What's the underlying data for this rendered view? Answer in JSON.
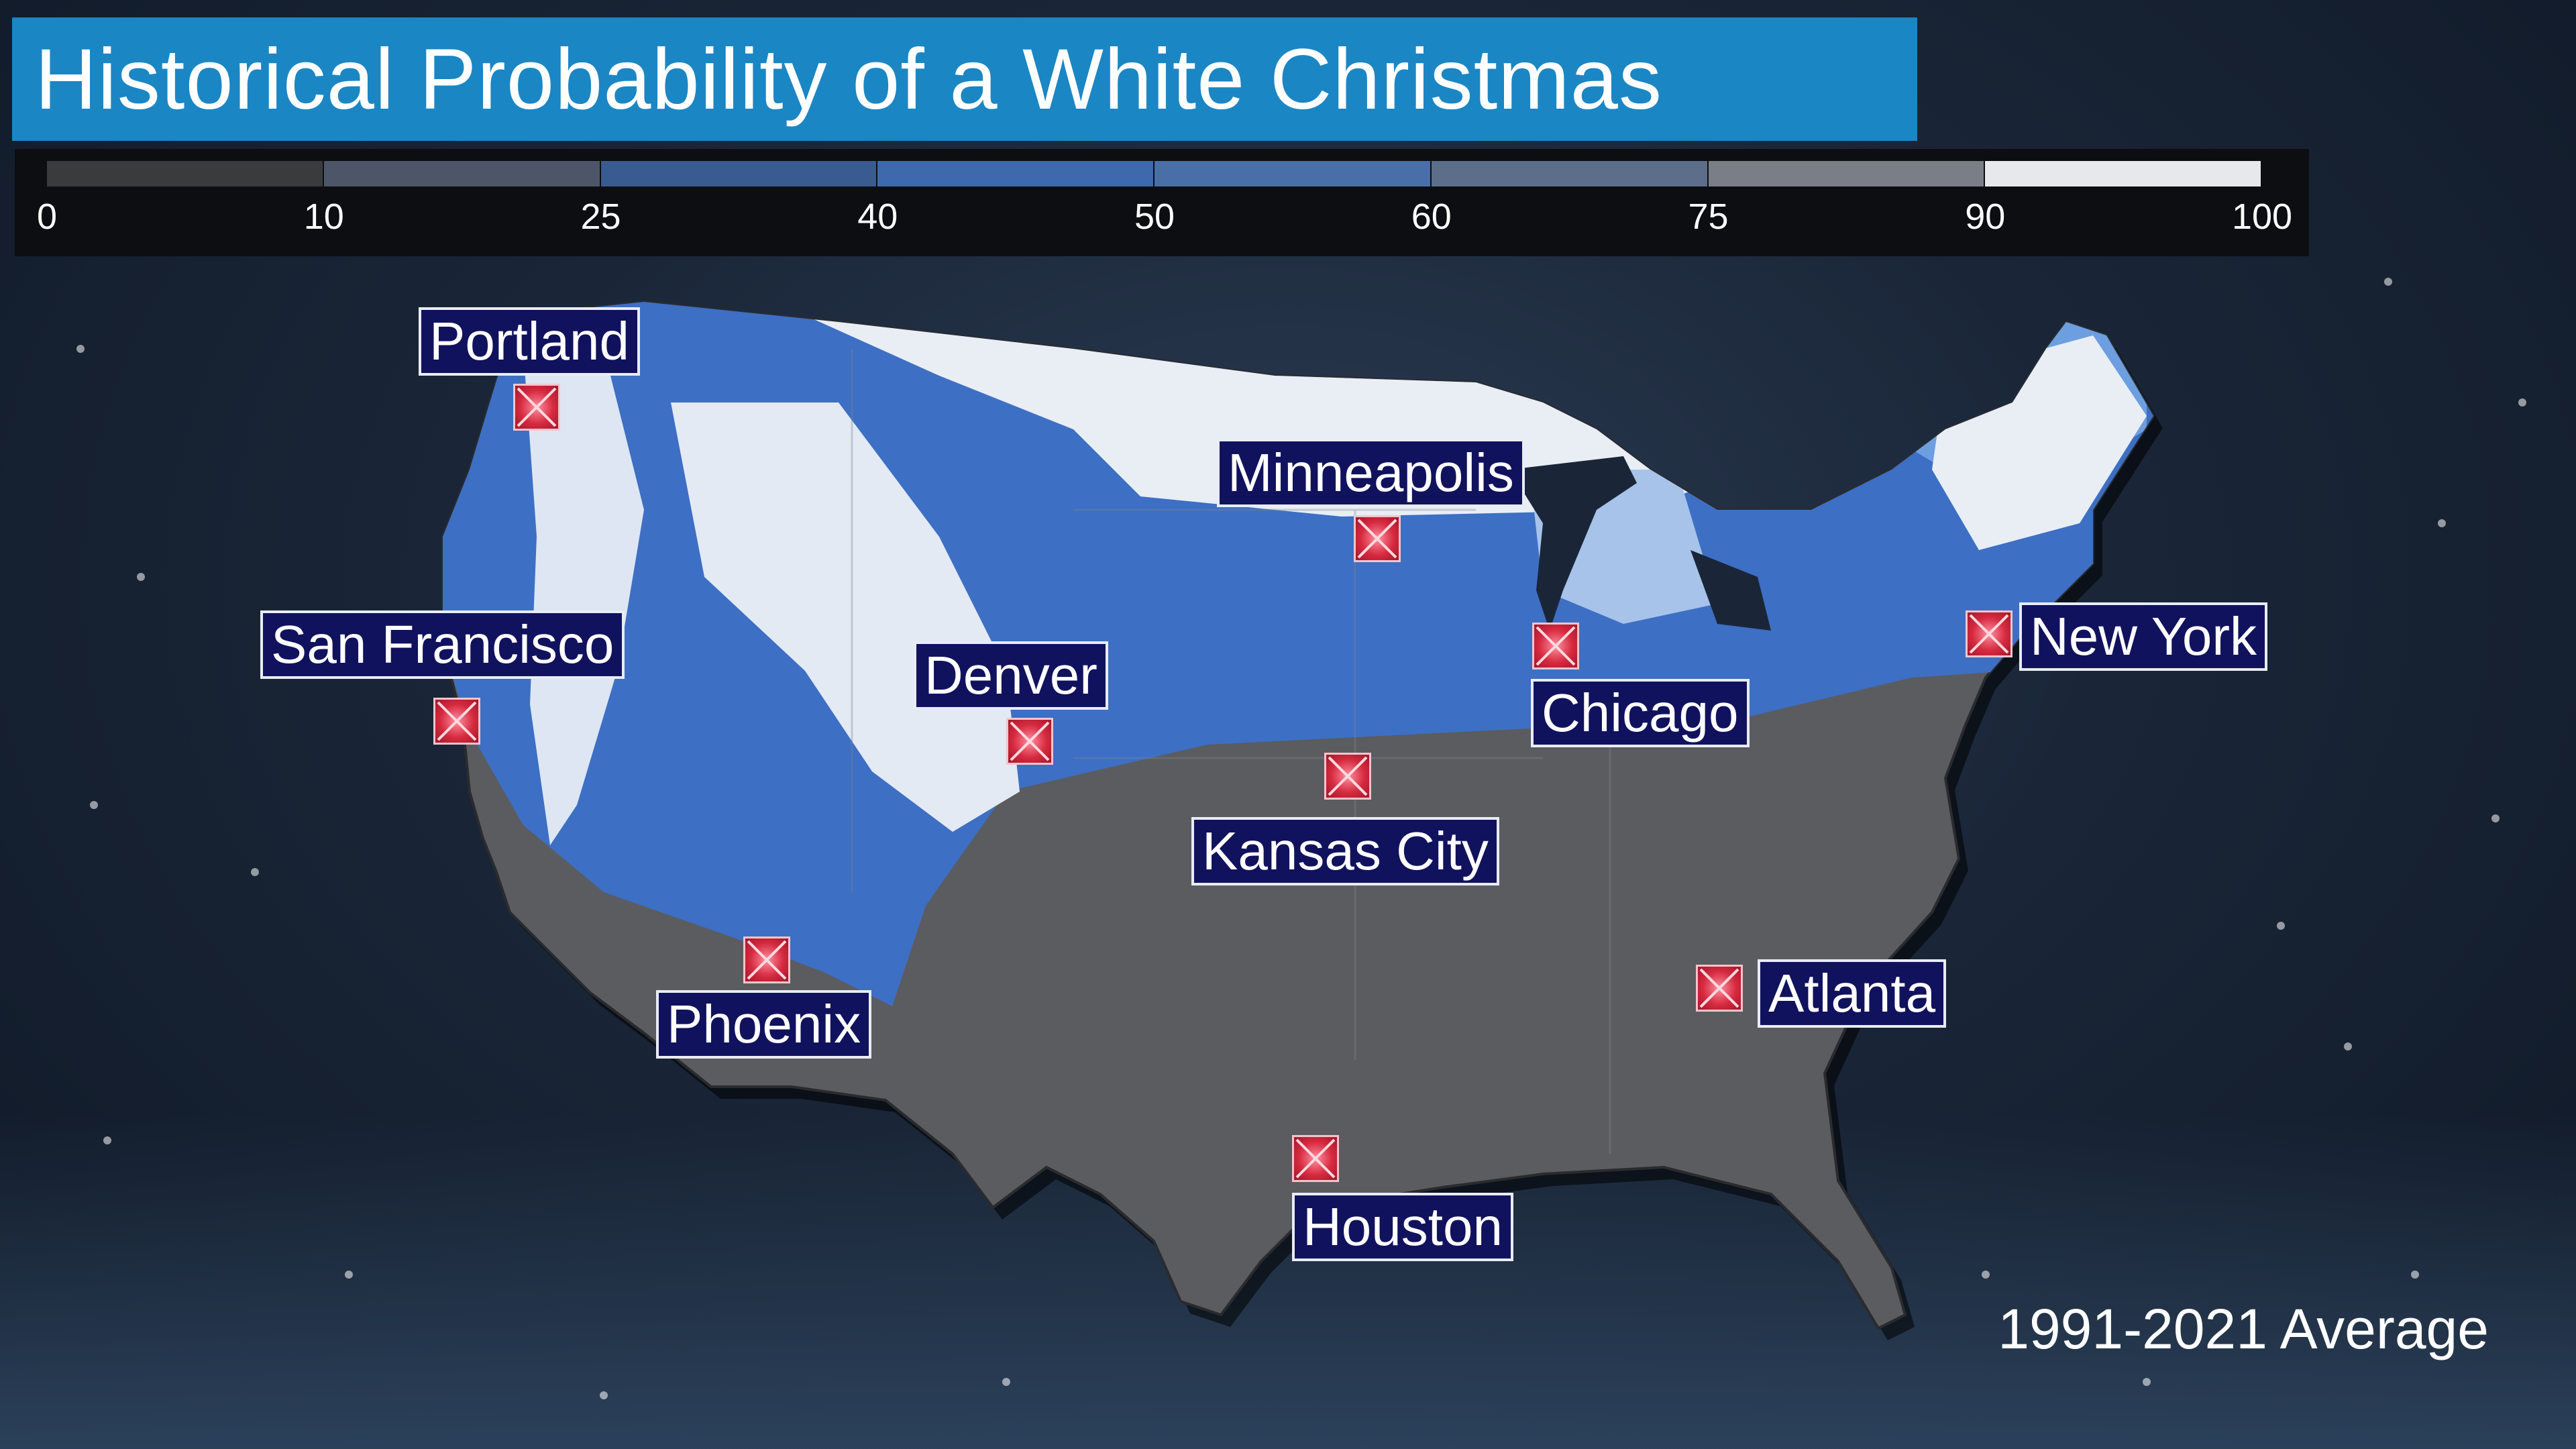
{
  "title": "Historical Probability of a White Christmas",
  "legend": {
    "bins": [
      {
        "from": 0,
        "to": 10,
        "color": "#3a3b3d"
      },
      {
        "from": 10,
        "to": 25,
        "color": "#4d5668"
      },
      {
        "from": 25,
        "to": 40,
        "color": "#3a5a92"
      },
      {
        "from": 40,
        "to": 50,
        "color": "#3f69ad"
      },
      {
        "from": 50,
        "to": 60,
        "color": "#4a6ea8"
      },
      {
        "from": 60,
        "to": 75,
        "color": "#5d6e8a"
      },
      {
        "from": 75,
        "to": 90,
        "color": "#7a7f87"
      },
      {
        "from": 90,
        "to": 100,
        "color": "#e6e8ec"
      }
    ],
    "ticks": [
      "0",
      "10",
      "25",
      "40",
      "50",
      "60",
      "75",
      "90",
      "100"
    ]
  },
  "cities": [
    {
      "id": "portland",
      "label": "Portland"
    },
    {
      "id": "minneapolis",
      "label": "Minneapolis"
    },
    {
      "id": "san-francisco",
      "label": "San Francisco"
    },
    {
      "id": "denver",
      "label": "Denver"
    },
    {
      "id": "chicago",
      "label": "Chicago"
    },
    {
      "id": "new-york",
      "label": "New York"
    },
    {
      "id": "kansas-city",
      "label": "Kansas City"
    },
    {
      "id": "phoenix",
      "label": "Phoenix"
    },
    {
      "id": "atlanta",
      "label": "Atlanta"
    },
    {
      "id": "houston",
      "label": "Houston"
    }
  ],
  "footer": "1991-2021 Average",
  "colors": {
    "title_bg": "#1b86c4",
    "label_bg": "#11125e",
    "marker": "#d62a3f",
    "land_low": "#5b5c5f",
    "land_mid": "#3d6fc4",
    "land_high": "#e9eef5"
  },
  "icons": {
    "marker": "x-marker-icon"
  }
}
